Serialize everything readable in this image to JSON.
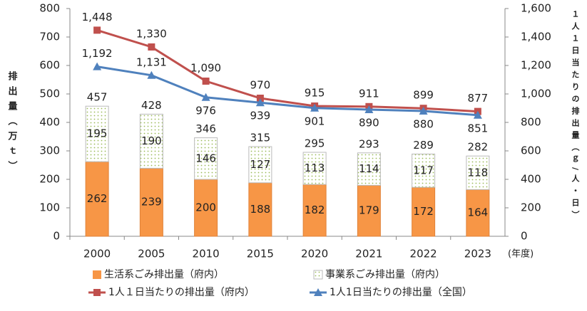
{
  "chart_data": {
    "type": "bar-line",
    "categories": [
      "2000",
      "2005",
      "2010",
      "2015",
      "2020",
      "2021",
      "2022",
      "2023"
    ],
    "x_unit_label": "(年度)",
    "ylabel": "排出量（万ｔ）",
    "y2label": "１人１日当たりの排出量（ｇ/人・日）",
    "ylim": [
      0,
      800
    ],
    "yticks": [
      0,
      100,
      200,
      300,
      400,
      500,
      600,
      700,
      800
    ],
    "y2lim": [
      0,
      1600
    ],
    "y2ticks": [
      0,
      200,
      400,
      600,
      800,
      {
        "value": 1000,
        "label": "1,000"
      },
      {
        "value": 1200,
        "label": "1,200"
      },
      {
        "value": 1400,
        "label": "1,400"
      },
      {
        "value": 1600,
        "label": "1,600"
      }
    ],
    "series": [
      {
        "name": "生活系ごみ排出量（府内）",
        "kind": "bar",
        "color": "#f79646",
        "values": [
          262,
          239,
          200,
          188,
          182,
          179,
          172,
          164
        ]
      },
      {
        "name": "事業系ごみ排出量（府内）",
        "kind": "bar",
        "color": "#9bbb59",
        "pattern": "dots",
        "values": [
          195,
          190,
          146,
          127,
          113,
          114,
          117,
          118
        ]
      },
      {
        "name": "1人１日当たりの排出量（府内）",
        "kind": "line",
        "axis": "y2",
        "marker": "square",
        "color": "#c0504d",
        "values": [
          1448,
          1330,
          1090,
          970,
          915,
          911,
          899,
          877
        ],
        "value_labels": [
          "1,448",
          "1,330",
          "1,090",
          "970",
          "915",
          "911",
          "899",
          "877"
        ]
      },
      {
        "name": "1人1日当たりの排出量（全国）",
        "kind": "line",
        "axis": "y2",
        "marker": "triangle",
        "color": "#4f81bd",
        "values": [
          1192,
          1131,
          976,
          939,
          901,
          890,
          880,
          851
        ],
        "value_labels": [
          "1,192",
          "1,131",
          "976",
          "939",
          "901",
          "890",
          "880",
          "851"
        ]
      }
    ],
    "totals": [
      457,
      428,
      346,
      315,
      295,
      293,
      289,
      282
    ]
  }
}
